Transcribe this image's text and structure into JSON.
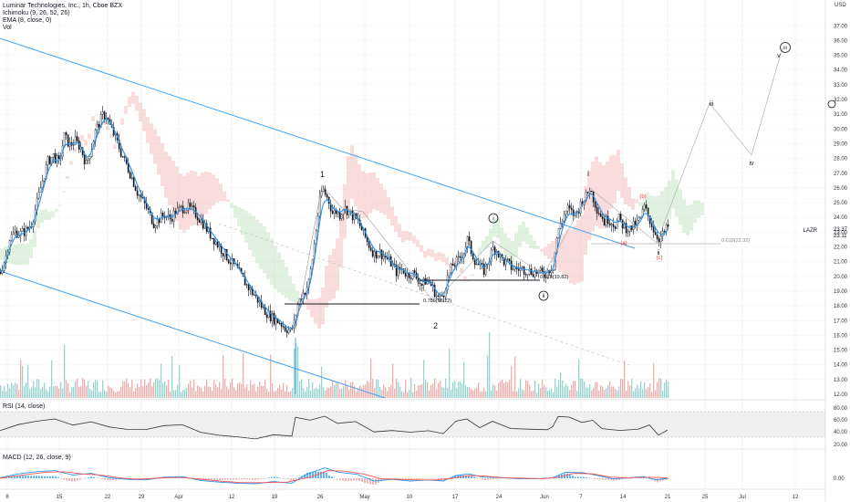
{
  "header": {
    "title": "Luminar Technologies, Inc., 1h, Cboe BZX",
    "ichimoku": "Ichimoku (9, 26, 52, 26)",
    "ema": "EMA (8, close, 0)",
    "vol": "Vol"
  },
  "price_axis": {
    "unit": "USD",
    "ticks": [
      "37.00",
      "36.00",
      "35.00",
      "34.00",
      "33.00",
      "32.00",
      "31.00",
      "30.00",
      "29.00",
      "28.00",
      "27.00",
      "26.00",
      "25.00",
      "24.00",
      "23.00",
      "22.00",
      "21.00",
      "20.00",
      "19.00",
      "18.00",
      "17.00",
      "16.00",
      "15.00",
      "14.00",
      "13.00",
      "12.00"
    ],
    "symbol_tag": "LAZR",
    "last_price": "23.37",
    "last_price_2": "23.11"
  },
  "rsi_panel": {
    "label": "RSI (14, close)",
    "ticks": [
      "80.00",
      "60.00",
      "40.00",
      "20.00"
    ]
  },
  "macd_panel": {
    "label": "MACD (12, 26, close, 9)",
    "ticks": [
      "0.00"
    ]
  },
  "time_axis": {
    "labels": [
      "8",
      "15",
      "22",
      "29",
      "Apr",
      "12",
      "19",
      "26",
      "May",
      "10",
      "17",
      "24",
      "Jun",
      "7",
      "14",
      "21",
      "25",
      "Jul",
      "12"
    ]
  },
  "annotations": {
    "wave_1": "1",
    "wave_2": "2",
    "wave_i_circled": "i",
    "wave_ii_circled": "ii",
    "wave_iii_circled": "iii",
    "wave_i": "i",
    "wave_ii": "ii",
    "wave_iii": "iii",
    "wave_iv": "iv",
    "wave_v": "v",
    "wave_a": "(a)",
    "wave_b": "(b)",
    "wave_c": "(c)",
    "fib_786": "0.786(18.22)",
    "fib_618_low": "0.618(19.82)",
    "fib_618_high": "0.618(22.32)"
  },
  "colors": {
    "candle": "#131722",
    "ema": "#2196f3",
    "channel": "#42a5f5",
    "cloud_bull": "#a5d6a7",
    "cloud_bear": "#ef9a9a",
    "vol_up": "#80cbc4",
    "vol_down": "#ef9a9a",
    "rsi_line": "#333333",
    "macd_line": "#2196f3",
    "signal_line": "#ff5252",
    "red_label": "#e53935"
  },
  "chart_data": {
    "type": "candlestick",
    "title": "Luminar Technologies, Inc., 1h, Cboe BZX",
    "ylim": [
      12,
      37.5
    ],
    "grid": true,
    "price_path": [
      [
        0,
        20.3
      ],
      [
        6,
        21.4
      ],
      [
        10,
        22.6
      ],
      [
        16,
        23.0
      ],
      [
        22,
        22.9
      ],
      [
        28,
        23.1
      ],
      [
        34,
        23.6
      ],
      [
        40,
        25.0
      ],
      [
        46,
        26.5
      ],
      [
        52,
        27.8
      ],
      [
        58,
        28.2
      ],
      [
        64,
        27.7
      ],
      [
        70,
        29.5
      ],
      [
        76,
        28.9
      ],
      [
        82,
        29.2
      ],
      [
        88,
        28.7
      ],
      [
        94,
        27.6
      ],
      [
        100,
        28.8
      ],
      [
        104,
        29.8
      ],
      [
        108,
        30.4
      ],
      [
        112,
        30.9
      ],
      [
        116,
        30.9
      ],
      [
        120,
        30.2
      ],
      [
        126,
        29.4
      ],
      [
        132,
        28.4
      ],
      [
        138,
        27.6
      ],
      [
        144,
        26.7
      ],
      [
        150,
        25.7
      ],
      [
        156,
        25.1
      ],
      [
        162,
        24.4
      ],
      [
        168,
        23.6
      ],
      [
        174,
        23.9
      ],
      [
        180,
        24.2
      ],
      [
        186,
        23.9
      ],
      [
        192,
        24.4
      ],
      [
        198,
        24.6
      ],
      [
        204,
        24.7
      ],
      [
        210,
        24.5
      ],
      [
        216,
        24.1
      ],
      [
        222,
        23.6
      ],
      [
        228,
        23.0
      ],
      [
        234,
        22.5
      ],
      [
        240,
        22.0
      ],
      [
        246,
        21.5
      ],
      [
        252,
        21.0
      ],
      [
        258,
        20.6
      ],
      [
        264,
        20.0
      ],
      [
        270,
        19.4
      ],
      [
        276,
        18.9
      ],
      [
        282,
        18.4
      ],
      [
        288,
        17.8
      ],
      [
        294,
        17.4
      ],
      [
        300,
        17.1
      ],
      [
        306,
        16.9
      ],
      [
        312,
        16.5
      ],
      [
        318,
        16.3
      ],
      [
        322,
        16.8
      ],
      [
        326,
        18.1
      ],
      [
        330,
        18.7
      ],
      [
        334,
        19.0
      ],
      [
        338,
        19.6
      ],
      [
        342,
        21.2
      ],
      [
        346,
        23.2
      ],
      [
        350,
        25.1
      ],
      [
        353,
        26.0
      ],
      [
        356,
        25.6
      ],
      [
        360,
        25.1
      ],
      [
        364,
        24.3
      ],
      [
        368,
        24.4
      ],
      [
        372,
        24.2
      ],
      [
        376,
        24.7
      ],
      [
        380,
        24.5
      ],
      [
        386,
        24.1
      ],
      [
        392,
        23.7
      ],
      [
        398,
        22.9
      ],
      [
        404,
        22.1
      ],
      [
        410,
        21.5
      ],
      [
        416,
        21.6
      ],
      [
        422,
        21.3
      ],
      [
        428,
        20.9
      ],
      [
        434,
        20.3
      ],
      [
        440,
        20.5
      ],
      [
        446,
        20.1
      ],
      [
        452,
        20.2
      ],
      [
        458,
        19.8
      ],
      [
        462,
        19.4
      ],
      [
        466,
        19.7
      ],
      [
        470,
        19.6
      ],
      [
        474,
        19.2
      ],
      [
        478,
        18.7
      ],
      [
        482,
        18.5
      ],
      [
        486,
        18.9
      ],
      [
        490,
        19.9
      ],
      [
        496,
        20.8
      ],
      [
        502,
        21.1
      ],
      [
        508,
        21.7
      ],
      [
        512,
        22.5
      ],
      [
        516,
        21.7
      ],
      [
        520,
        21.1
      ],
      [
        526,
        20.6
      ],
      [
        530,
        20.4
      ],
      [
        536,
        21.2
      ],
      [
        540,
        21.9
      ],
      [
        544,
        21.8
      ],
      [
        548,
        21.3
      ],
      [
        552,
        21.0
      ],
      [
        556,
        20.9
      ],
      [
        560,
        20.6
      ],
      [
        566,
        20.5
      ],
      [
        572,
        20.5
      ],
      [
        578,
        20.4
      ],
      [
        584,
        20.3
      ],
      [
        590,
        20.3
      ],
      [
        596,
        20.1
      ],
      [
        602,
        20.5
      ],
      [
        606,
        20.7
      ],
      [
        610,
        22.6
      ],
      [
        614,
        23.6
      ],
      [
        618,
        24.2
      ],
      [
        622,
        24.6
      ],
      [
        626,
        24.3
      ],
      [
        630,
        24.2
      ],
      [
        634,
        24.6
      ],
      [
        638,
        25.2
      ],
      [
        642,
        25.4
      ],
      [
        646,
        26.0
      ],
      [
        650,
        25.3
      ],
      [
        654,
        24.6
      ],
      [
        658,
        24.2
      ],
      [
        662,
        23.7
      ],
      [
        666,
        23.9
      ],
      [
        670,
        23.7
      ],
      [
        674,
        23.5
      ],
      [
        678,
        23.9
      ],
      [
        682,
        23.5
      ],
      [
        686,
        23.3
      ],
      [
        690,
        23.2
      ],
      [
        694,
        23.4
      ],
      [
        698,
        23.6
      ],
      [
        702,
        24.0
      ],
      [
        706,
        24.7
      ],
      [
        710,
        24.1
      ],
      [
        714,
        23.5
      ],
      [
        718,
        22.9
      ],
      [
        722,
        22.6
      ],
      [
        726,
        22.8
      ],
      [
        730,
        23.2
      ],
      [
        732,
        23.37
      ]
    ],
    "rsi_path": [
      [
        0,
        47
      ],
      [
        20,
        58
      ],
      [
        40,
        63
      ],
      [
        60,
        66
      ],
      [
        80,
        57
      ],
      [
        100,
        63
      ],
      [
        120,
        54
      ],
      [
        140,
        50
      ],
      [
        160,
        48
      ],
      [
        180,
        55
      ],
      [
        200,
        57
      ],
      [
        220,
        46
      ],
      [
        240,
        40
      ],
      [
        260,
        37
      ],
      [
        280,
        35
      ],
      [
        300,
        40
      ],
      [
        320,
        38
      ],
      [
        324,
        70
      ],
      [
        340,
        66
      ],
      [
        356,
        72
      ],
      [
        370,
        60
      ],
      [
        390,
        64
      ],
      [
        410,
        44
      ],
      [
        430,
        48
      ],
      [
        450,
        44
      ],
      [
        470,
        46
      ],
      [
        486,
        44
      ],
      [
        500,
        62
      ],
      [
        512,
        66
      ],
      [
        526,
        52
      ],
      [
        540,
        62
      ],
      [
        560,
        50
      ],
      [
        580,
        50
      ],
      [
        600,
        48
      ],
      [
        606,
        54
      ],
      [
        612,
        72
      ],
      [
        624,
        70
      ],
      [
        638,
        62
      ],
      [
        650,
        66
      ],
      [
        660,
        52
      ],
      [
        680,
        48
      ],
      [
        700,
        50
      ],
      [
        712,
        58
      ],
      [
        722,
        40
      ],
      [
        732,
        50
      ]
    ],
    "macd_path": [
      [
        0,
        0.02
      ],
      [
        20,
        0.16
      ],
      [
        40,
        0.24
      ],
      [
        60,
        0.28
      ],
      [
        80,
        0.12
      ],
      [
        100,
        0.18
      ],
      [
        120,
        0.02
      ],
      [
        140,
        -0.04
      ],
      [
        160,
        -0.06
      ],
      [
        180,
        0.04
      ],
      [
        200,
        0.06
      ],
      [
        220,
        -0.08
      ],
      [
        240,
        -0.14
      ],
      [
        260,
        -0.18
      ],
      [
        280,
        -0.2
      ],
      [
        300,
        -0.12
      ],
      [
        320,
        -0.18
      ],
      [
        336,
        0.14
      ],
      [
        356,
        0.38
      ],
      [
        372,
        0.22
      ],
      [
        392,
        0.14
      ],
      [
        410,
        -0.1
      ],
      [
        430,
        -0.04
      ],
      [
        450,
        -0.1
      ],
      [
        470,
        -0.06
      ],
      [
        486,
        -0.1
      ],
      [
        500,
        0.1
      ],
      [
        514,
        0.16
      ],
      [
        530,
        0.04
      ],
      [
        550,
        0.02
      ],
      [
        570,
        -0.02
      ],
      [
        590,
        -0.02
      ],
      [
        606,
        0.02
      ],
      [
        620,
        0.22
      ],
      [
        640,
        0.2
      ],
      [
        656,
        0.1
      ],
      [
        672,
        -0.02
      ],
      [
        690,
        0.02
      ],
      [
        706,
        0.06
      ],
      [
        720,
        -0.06
      ],
      [
        732,
        0.0
      ]
    ],
    "signal_path": [
      [
        0,
        0.0
      ],
      [
        25,
        0.12
      ],
      [
        50,
        0.22
      ],
      [
        70,
        0.24
      ],
      [
        90,
        0.16
      ],
      [
        110,
        0.12
      ],
      [
        130,
        0.02
      ],
      [
        150,
        -0.04
      ],
      [
        170,
        0.0
      ],
      [
        195,
        0.04
      ],
      [
        215,
        -0.02
      ],
      [
        240,
        -0.1
      ],
      [
        265,
        -0.16
      ],
      [
        290,
        -0.16
      ],
      [
        315,
        -0.14
      ],
      [
        340,
        0.04
      ],
      [
        360,
        0.28
      ],
      [
        378,
        0.26
      ],
      [
        398,
        0.16
      ],
      [
        418,
        -0.02
      ],
      [
        438,
        -0.04
      ],
      [
        458,
        -0.06
      ],
      [
        478,
        -0.06
      ],
      [
        496,
        0.0
      ],
      [
        514,
        0.1
      ],
      [
        532,
        0.08
      ],
      [
        552,
        0.02
      ],
      [
        576,
        0.0
      ],
      [
        596,
        -0.02
      ],
      [
        612,
        0.04
      ],
      [
        630,
        0.18
      ],
      [
        650,
        0.16
      ],
      [
        670,
        0.04
      ],
      [
        690,
        0.02
      ],
      [
        710,
        0.04
      ],
      [
        732,
        0.02
      ]
    ]
  }
}
